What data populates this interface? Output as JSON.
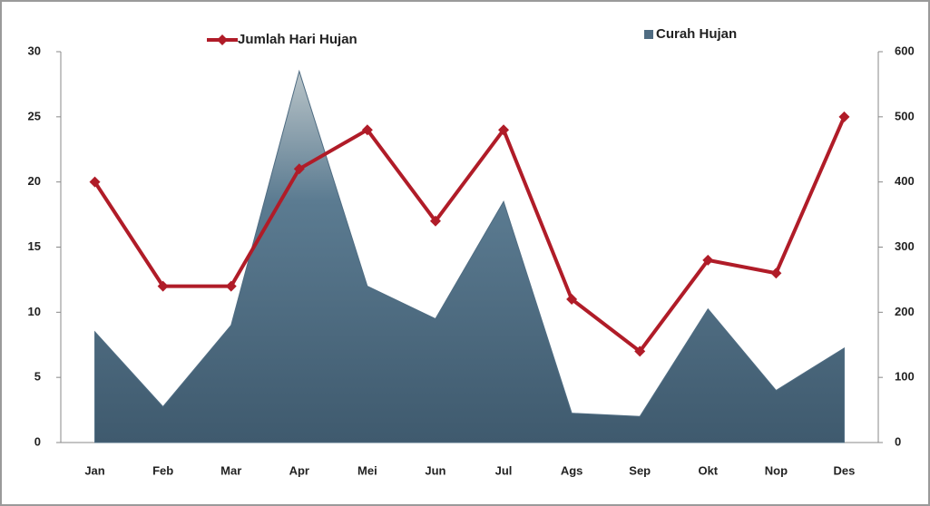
{
  "chart_data": {
    "type": "combo",
    "categories": [
      "Jan",
      "Feb",
      "Mar",
      "Apr",
      "Mei",
      "Jun",
      "Jul",
      "Ags",
      "Sep",
      "Okt",
      "Nop",
      "Des"
    ],
    "series": [
      {
        "name": "Curah Hujan",
        "type": "area",
        "axis": "y2",
        "color": "#4f6c82",
        "values": [
          170,
          55,
          180,
          570,
          240,
          190,
          370,
          45,
          40,
          205,
          80,
          145
        ]
      },
      {
        "name": "Jumlah Hari Hujan",
        "type": "line",
        "axis": "y",
        "color": "#b01c28",
        "values": [
          20,
          12,
          12,
          21,
          24,
          17,
          24,
          11,
          7,
          14,
          13,
          25
        ]
      }
    ],
    "ylim": [
      0,
      30
    ],
    "yticks": [
      0,
      5,
      10,
      15,
      20,
      25,
      30
    ],
    "y2lim": [
      0,
      600
    ],
    "y2ticks": [
      0,
      100,
      200,
      300,
      400,
      500,
      600
    ]
  }
}
